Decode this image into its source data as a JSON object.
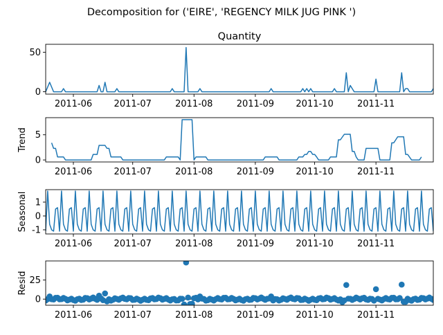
{
  "figure": {
    "title": "Decomposition for ('EIRE', 'REGENCY MILK JUG PINK ')",
    "line_color": "#1f77b4"
  },
  "chart_data": [
    {
      "type": "line",
      "name": "observed",
      "title": "Quantity",
      "ylabel": "",
      "x_start": "2011-05-18",
      "x_end": "2011-11-30",
      "x_tick_labels": [
        "2011-06",
        "2011-07",
        "2011-08",
        "2011-09",
        "2011-10",
        "2011-11"
      ],
      "x_tick_dates": [
        "2011-06-01",
        "2011-07-01",
        "2011-08-01",
        "2011-09-01",
        "2011-10-01",
        "2011-11-01"
      ],
      "ylim": [
        -3,
        60
      ],
      "y_ticks": [
        0,
        50
      ],
      "points": [
        [
          "2011-05-18",
          0
        ],
        [
          "2011-05-20",
          12
        ],
        [
          "2011-05-22",
          0
        ],
        [
          "2011-05-26",
          0
        ],
        [
          "2011-05-27",
          4
        ],
        [
          "2011-05-28",
          0
        ],
        [
          "2011-06-13",
          0
        ],
        [
          "2011-06-14",
          8
        ],
        [
          "2011-06-15",
          0
        ],
        [
          "2011-06-16",
          0
        ],
        [
          "2011-06-17",
          12
        ],
        [
          "2011-06-18",
          0
        ],
        [
          "2011-06-22",
          0
        ],
        [
          "2011-06-23",
          4
        ],
        [
          "2011-06-24",
          0
        ],
        [
          "2011-07-20",
          0
        ],
        [
          "2011-07-21",
          4
        ],
        [
          "2011-07-22",
          0
        ],
        [
          "2011-07-27",
          0
        ],
        [
          "2011-07-28",
          56
        ],
        [
          "2011-07-29",
          0
        ],
        [
          "2011-08-03",
          0
        ],
        [
          "2011-08-04",
          4
        ],
        [
          "2011-08-05",
          0
        ],
        [
          "2011-09-08",
          0
        ],
        [
          "2011-09-09",
          4
        ],
        [
          "2011-09-10",
          0
        ],
        [
          "2011-09-24",
          0
        ],
        [
          "2011-09-25",
          4
        ],
        [
          "2011-09-26",
          0
        ],
        [
          "2011-09-27",
          4
        ],
        [
          "2011-09-28",
          0
        ],
        [
          "2011-09-29",
          4
        ],
        [
          "2011-09-30",
          0
        ],
        [
          "2011-10-10",
          0
        ],
        [
          "2011-10-11",
          4
        ],
        [
          "2011-10-12",
          0
        ],
        [
          "2011-10-16",
          0
        ],
        [
          "2011-10-17",
          24
        ],
        [
          "2011-10-18",
          0
        ],
        [
          "2011-10-19",
          8
        ],
        [
          "2011-10-20",
          4
        ],
        [
          "2011-10-21",
          0
        ],
        [
          "2011-10-31",
          0
        ],
        [
          "2011-11-01",
          16
        ],
        [
          "2011-11-02",
          0
        ],
        [
          "2011-11-13",
          0
        ],
        [
          "2011-11-14",
          24
        ],
        [
          "2011-11-15",
          0
        ],
        [
          "2011-11-16",
          4
        ],
        [
          "2011-11-17",
          4
        ],
        [
          "2011-11-18",
          0
        ],
        [
          "2011-11-29",
          0
        ],
        [
          "2011-11-30",
          4
        ]
      ]
    },
    {
      "type": "line",
      "name": "trend",
      "title": "",
      "ylabel": "Trend",
      "x_start": "2011-05-18",
      "x_end": "2011-11-30",
      "x_tick_labels": [
        "2011-06",
        "2011-07",
        "2011-08",
        "2011-09",
        "2011-10",
        "2011-11"
      ],
      "x_tick_dates": [
        "2011-06-01",
        "2011-07-01",
        "2011-08-01",
        "2011-09-01",
        "2011-10-01",
        "2011-11-01"
      ],
      "ylim": [
        -0.4,
        8.4
      ],
      "y_ticks": [
        0,
        5
      ],
      "points": [
        [
          "2011-05-21",
          3.4
        ],
        [
          "2011-05-22",
          2.3
        ],
        [
          "2011-05-23",
          2.3
        ],
        [
          "2011-05-24",
          0.6
        ],
        [
          "2011-05-27",
          0.6
        ],
        [
          "2011-05-28",
          0
        ],
        [
          "2011-06-10",
          0
        ],
        [
          "2011-06-11",
          1.1
        ],
        [
          "2011-06-13",
          1.1
        ],
        [
          "2011-06-14",
          2.9
        ],
        [
          "2011-06-17",
          2.9
        ],
        [
          "2011-06-18",
          2.3
        ],
        [
          "2011-06-19",
          2.3
        ],
        [
          "2011-06-20",
          0.6
        ],
        [
          "2011-06-25",
          0.6
        ],
        [
          "2011-06-26",
          0
        ],
        [
          "2011-07-17",
          0
        ],
        [
          "2011-07-18",
          0.6
        ],
        [
          "2011-07-24",
          0.6
        ],
        [
          "2011-07-25",
          0
        ],
        [
          "2011-07-26",
          8
        ],
        [
          "2011-07-31",
          8
        ],
        [
          "2011-08-01",
          0
        ],
        [
          "2011-08-02",
          0.6
        ],
        [
          "2011-08-07",
          0.6
        ],
        [
          "2011-08-08",
          0
        ],
        [
          "2011-09-05",
          0
        ],
        [
          "2011-09-06",
          0.6
        ],
        [
          "2011-09-12",
          0.6
        ],
        [
          "2011-09-13",
          0
        ],
        [
          "2011-09-22",
          0
        ],
        [
          "2011-09-23",
          0.6
        ],
        [
          "2011-09-25",
          0.6
        ],
        [
          "2011-09-26",
          1.1
        ],
        [
          "2011-09-27",
          1.1
        ],
        [
          "2011-09-28",
          1.7
        ],
        [
          "2011-09-29",
          1.7
        ],
        [
          "2011-09-30",
          1.1
        ],
        [
          "2011-10-01",
          1.1
        ],
        [
          "2011-10-02",
          0.6
        ],
        [
          "2011-10-03",
          0
        ],
        [
          "2011-10-08",
          0
        ],
        [
          "2011-10-09",
          0.6
        ],
        [
          "2011-10-12",
          0.6
        ],
        [
          "2011-10-13",
          4
        ],
        [
          "2011-10-14",
          4
        ],
        [
          "2011-10-16",
          5.1
        ],
        [
          "2011-10-19",
          5.1
        ],
        [
          "2011-10-20",
          1.7
        ],
        [
          "2011-10-21",
          1.7
        ],
        [
          "2011-10-22",
          0.6
        ],
        [
          "2011-10-23",
          0
        ],
        [
          "2011-10-26",
          0
        ],
        [
          "2011-10-27",
          2.3
        ],
        [
          "2011-11-02",
          2.3
        ],
        [
          "2011-11-03",
          0
        ],
        [
          "2011-11-08",
          0
        ],
        [
          "2011-11-09",
          3.4
        ],
        [
          "2011-11-10",
          3.4
        ],
        [
          "2011-11-12",
          4.6
        ],
        [
          "2011-11-15",
          4.6
        ],
        [
          "2011-11-16",
          1.1
        ],
        [
          "2011-11-17",
          1.1
        ],
        [
          "2011-11-19",
          0
        ],
        [
          "2011-11-23",
          0
        ],
        [
          "2011-11-24",
          0.6
        ]
      ]
    },
    {
      "type": "line",
      "name": "seasonal",
      "title": "",
      "ylabel": "Seasonal",
      "x_start": "2011-05-18",
      "x_end": "2011-11-30",
      "x_tick_labels": [
        "2011-06",
        "2011-07",
        "2011-08",
        "2011-09",
        "2011-10",
        "2011-11"
      ],
      "x_tick_dates": [
        "2011-06-01",
        "2011-07-01",
        "2011-08-01",
        "2011-09-01",
        "2011-10-01",
        "2011-11-01"
      ],
      "ylim": [
        -1.3,
        1.9
      ],
      "y_ticks": [
        -1,
        0,
        1
      ],
      "period_start": "2011-05-18",
      "period_days": 7,
      "weekly_pattern": [
        -1.1,
        1.8,
        -0.6,
        -1.0,
        -1.1,
        0.5,
        0.6
      ]
    },
    {
      "type": "scatter",
      "name": "resid",
      "title": "",
      "ylabel": "Resid",
      "x_start": "2011-05-18",
      "x_end": "2011-11-30",
      "x_tick_labels": [
        "2011-06",
        "2011-07",
        "2011-08",
        "2011-09",
        "2011-10",
        "2011-11"
      ],
      "x_tick_dates": [
        "2011-06-01",
        "2011-07-01",
        "2011-08-01",
        "2011-09-01",
        "2011-10-01",
        "2011-11-01"
      ],
      "ylim": [
        -8,
        50
      ],
      "y_ticks": [
        0,
        25
      ],
      "baseline": 0,
      "base_noise_amp": 2.2,
      "outliers": [
        [
          "2011-05-20",
          3.5
        ],
        [
          "2011-06-14",
          4.5
        ],
        [
          "2011-06-17",
          7.5
        ],
        [
          "2011-06-18",
          -3
        ],
        [
          "2011-07-27",
          -7
        ],
        [
          "2011-07-28",
          48
        ],
        [
          "2011-07-30",
          -6.5
        ],
        [
          "2011-07-31",
          -6
        ],
        [
          "2011-08-04",
          3.5
        ],
        [
          "2011-09-09",
          3.5
        ],
        [
          "2011-10-15",
          -4
        ],
        [
          "2011-10-17",
          18.5
        ],
        [
          "2011-11-01",
          13
        ],
        [
          "2011-11-14",
          19
        ],
        [
          "2011-11-15",
          -3.5
        ],
        [
          "2011-11-16",
          -3.5
        ]
      ]
    }
  ]
}
